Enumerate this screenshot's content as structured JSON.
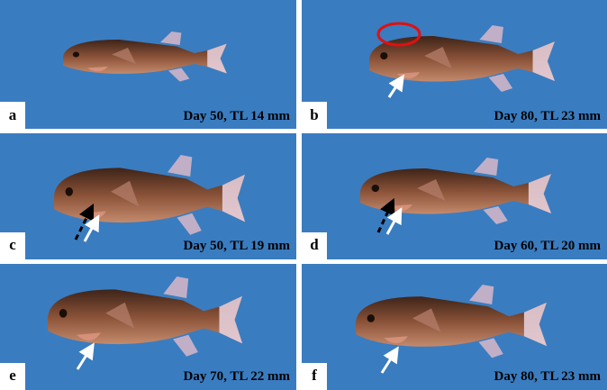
{
  "panels": [
    {
      "letter": "a",
      "caption": "Day 50, TL 14 mm"
    },
    {
      "letter": "b",
      "caption": "Day 80, TL 23 mm"
    },
    {
      "letter": "c",
      "caption": "Day 50, TL 19 mm"
    },
    {
      "letter": "d",
      "caption": "Day 60, TL 20 mm"
    },
    {
      "letter": "e",
      "caption": "Day 70, TL 22 mm"
    },
    {
      "letter": "f",
      "caption": "Day 80, TL 23 mm"
    }
  ]
}
